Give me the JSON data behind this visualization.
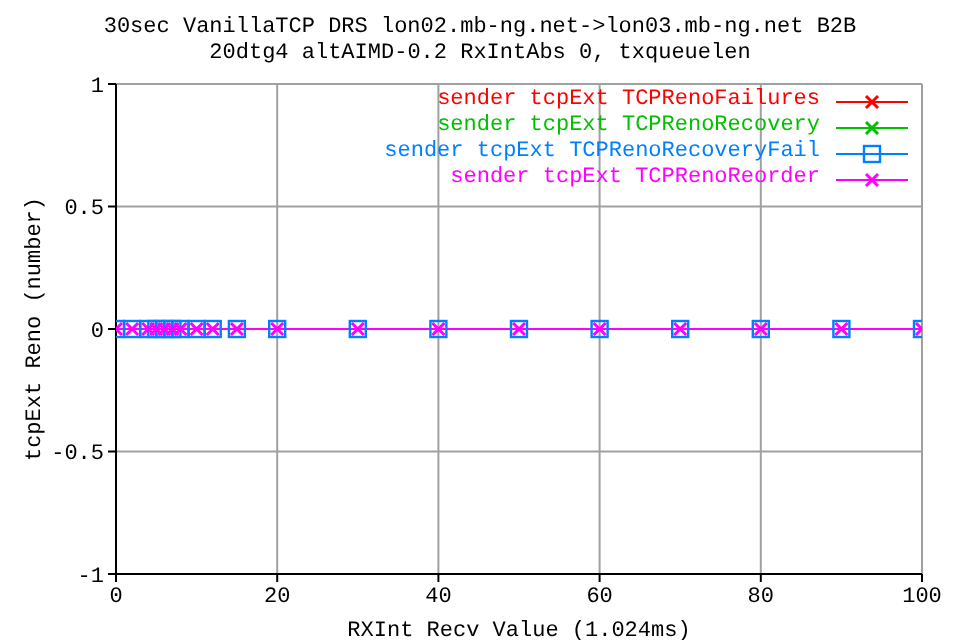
{
  "chart_data": {
    "type": "line",
    "title": "30sec VanillaTCP DRS lon02.mb-ng.net->lon03.mb-ng.net B2B",
    "subtitle": "20dtg4 altAIMD-0.2 RxIntAbs 0, txqueuelen",
    "xlabel": "RXInt Recv Value (1.024ms)",
    "ylabel": "tcpExt Reno (number)",
    "x": [
      0,
      2,
      4,
      5,
      6,
      7,
      8,
      10,
      12,
      15,
      20,
      30,
      40,
      50,
      60,
      70,
      80,
      90,
      100
    ],
    "series": [
      {
        "name": "sender tcpExt TCPRenoFailures",
        "color": "#ff0000",
        "marker": "cross",
        "values": [
          null,
          null,
          null,
          null,
          null,
          null,
          null,
          null,
          null,
          null,
          null,
          null,
          null,
          null,
          null,
          null,
          null,
          null,
          null
        ]
      },
      {
        "name": "sender tcpExt TCPRenoRecovery",
        "color": "#00c000",
        "marker": "cross",
        "values": [
          null,
          null,
          null,
          null,
          null,
          null,
          null,
          null,
          null,
          null,
          null,
          null,
          null,
          null,
          null,
          null,
          null,
          null,
          null
        ]
      },
      {
        "name": "sender tcpExt TCPRenoRecoveryFail",
        "color": "#0080ff",
        "marker": "square",
        "values": [
          0,
          0,
          0,
          0,
          0,
          0,
          0,
          0,
          0,
          0,
          0,
          0,
          0,
          0,
          0,
          0,
          0,
          0,
          0
        ]
      },
      {
        "name": "sender tcpExt TCPRenoReorder",
        "color": "#ff00ff",
        "marker": "cross",
        "values": [
          0,
          0,
          0,
          0,
          0,
          0,
          0,
          0,
          0,
          0,
          0,
          0,
          0,
          0,
          0,
          0,
          0,
          0,
          0
        ]
      }
    ],
    "xlim": [
      0,
      100
    ],
    "xticks": [
      0,
      20,
      40,
      60,
      80,
      100
    ],
    "ylim": [
      -1,
      1
    ],
    "yticks": [
      -1,
      -0.5,
      0,
      0.5,
      1
    ],
    "grid": true,
    "legend": "top right",
    "line_style": "solid"
  }
}
